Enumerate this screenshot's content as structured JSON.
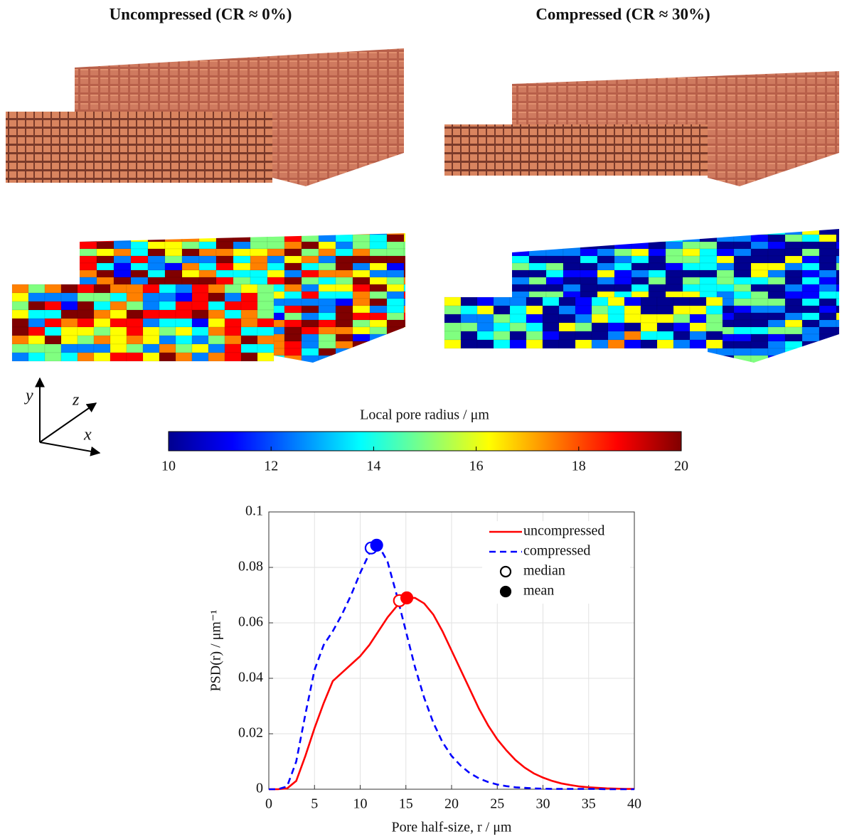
{
  "panels": {
    "left_title": "Uncompressed (CR ≈ 0%)",
    "right_title": "Compressed (CR ≈ 30%)"
  },
  "axes_icon": {
    "y": "y",
    "z": "z",
    "x": "x"
  },
  "colorbar": {
    "label": "Local pore radius / μm",
    "lim": [
      10,
      20
    ],
    "ticks": [
      10,
      12,
      14,
      16,
      18,
      20
    ],
    "colors": [
      "#00008f",
      "#0000ff",
      "#0080ff",
      "#00ffff",
      "#80ff80",
      "#ffff00",
      "#ff8000",
      "#ff0000",
      "#800000"
    ]
  },
  "chart_data": {
    "type": "line",
    "xlabel": "Pore half-size, r / μm",
    "ylabel": "PSD(r) / μm⁻¹",
    "x": [
      0,
      1,
      2,
      3,
      4,
      5,
      6,
      7,
      8,
      9,
      10,
      11,
      12,
      13,
      14,
      15,
      16,
      17,
      18,
      19,
      20,
      21,
      22,
      23,
      24,
      25,
      26,
      27,
      28,
      29,
      30,
      31,
      32,
      33,
      34,
      35,
      36,
      37,
      38,
      39,
      40
    ],
    "series": [
      {
        "name": "uncompressed",
        "color": "#ff0000",
        "dash": "solid",
        "values": [
          0,
          0,
          0.0003,
          0.003,
          0.012,
          0.022,
          0.031,
          0.039,
          0.042,
          0.045,
          0.048,
          0.052,
          0.057,
          0.062,
          0.066,
          0.069,
          0.069,
          0.067,
          0.063,
          0.057,
          0.05,
          0.043,
          0.036,
          0.029,
          0.023,
          0.018,
          0.014,
          0.0105,
          0.0078,
          0.0057,
          0.0042,
          0.003,
          0.0021,
          0.0015,
          0.001,
          0.0007,
          0.0005,
          0.0003,
          0.0002,
          0.0001,
          0.0001
        ]
      },
      {
        "name": "compressed",
        "color": "#0000ff",
        "dash": "dashed",
        "values": [
          0,
          0,
          0.001,
          0.01,
          0.027,
          0.043,
          0.052,
          0.057,
          0.063,
          0.07,
          0.078,
          0.085,
          0.088,
          0.082,
          0.07,
          0.057,
          0.044,
          0.033,
          0.024,
          0.017,
          0.012,
          0.0085,
          0.0058,
          0.0039,
          0.0026,
          0.0017,
          0.0011,
          0.0007,
          0.0005,
          0.0003,
          0.0002,
          0.0001,
          0.0001,
          0.0001,
          0.0001,
          0.0001,
          0.0001,
          0,
          0,
          0,
          0
        ]
      }
    ],
    "markers": [
      {
        "name": "median",
        "filled": false,
        "points": [
          {
            "x": 11.2,
            "y": 0.087,
            "color": "#0000ff"
          },
          {
            "x": 14.3,
            "y": 0.068,
            "color": "#ff0000"
          }
        ]
      },
      {
        "name": "mean",
        "filled": true,
        "points": [
          {
            "x": 11.8,
            "y": 0.088,
            "color": "#0000ff"
          },
          {
            "x": 15.1,
            "y": 0.069,
            "color": "#ff0000"
          }
        ]
      }
    ],
    "xlim": [
      0,
      40
    ],
    "xticks": [
      0,
      5,
      10,
      15,
      20,
      25,
      30,
      35,
      40
    ],
    "ylim": [
      0,
      0.1
    ],
    "yticks": [
      0,
      0.02,
      0.04,
      0.06,
      0.08,
      0.1
    ],
    "grid": true
  }
}
